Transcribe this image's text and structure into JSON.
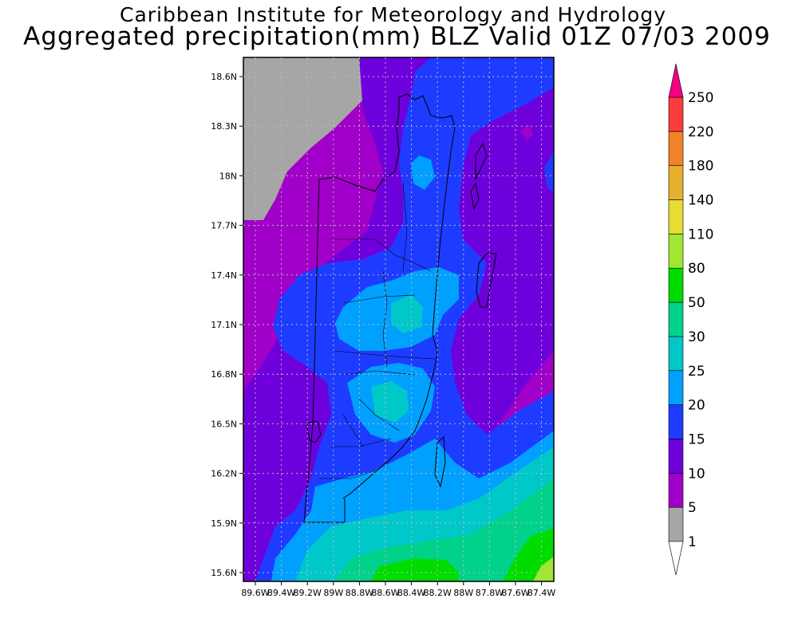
{
  "title": {
    "line1": "Caribbean Institute for Meteorology and Hydrology",
    "line2": "Aggregated precipitation(mm) BLZ Valid 01Z 07/03 2009"
  },
  "map": {
    "lat_ticks": [
      "18.6N",
      "18.3N",
      "18N",
      "17.7N",
      "17.4N",
      "17.1N",
      "16.8N",
      "16.5N",
      "16.2N",
      "15.9N",
      "15.6N"
    ],
    "lon_ticks": [
      "89.6W",
      "89.4W",
      "89.2W",
      "89W",
      "88.8W",
      "88.6W",
      "88.4W",
      "88.2W",
      "88W",
      "87.8W",
      "87.6W",
      "87.4W"
    ],
    "grid": true
  },
  "colorbar": {
    "levels": [
      "1",
      "5",
      "10",
      "15",
      "20",
      "25",
      "30",
      "50",
      "80",
      "110",
      "140",
      "180",
      "220",
      "250"
    ],
    "colors": [
      "#a6a6a6",
      "#a000c8",
      "#6e00dc",
      "#1e3cff",
      "#00a0ff",
      "#00c8c8",
      "#00d28c",
      "#00dc00",
      "#a0e632",
      "#e6dc32",
      "#e6af2d",
      "#f08228",
      "#fa3c3c",
      "#f00082"
    ],
    "low_arrow_color": "#ffffff",
    "high_arrow_color": "#f00082"
  }
}
